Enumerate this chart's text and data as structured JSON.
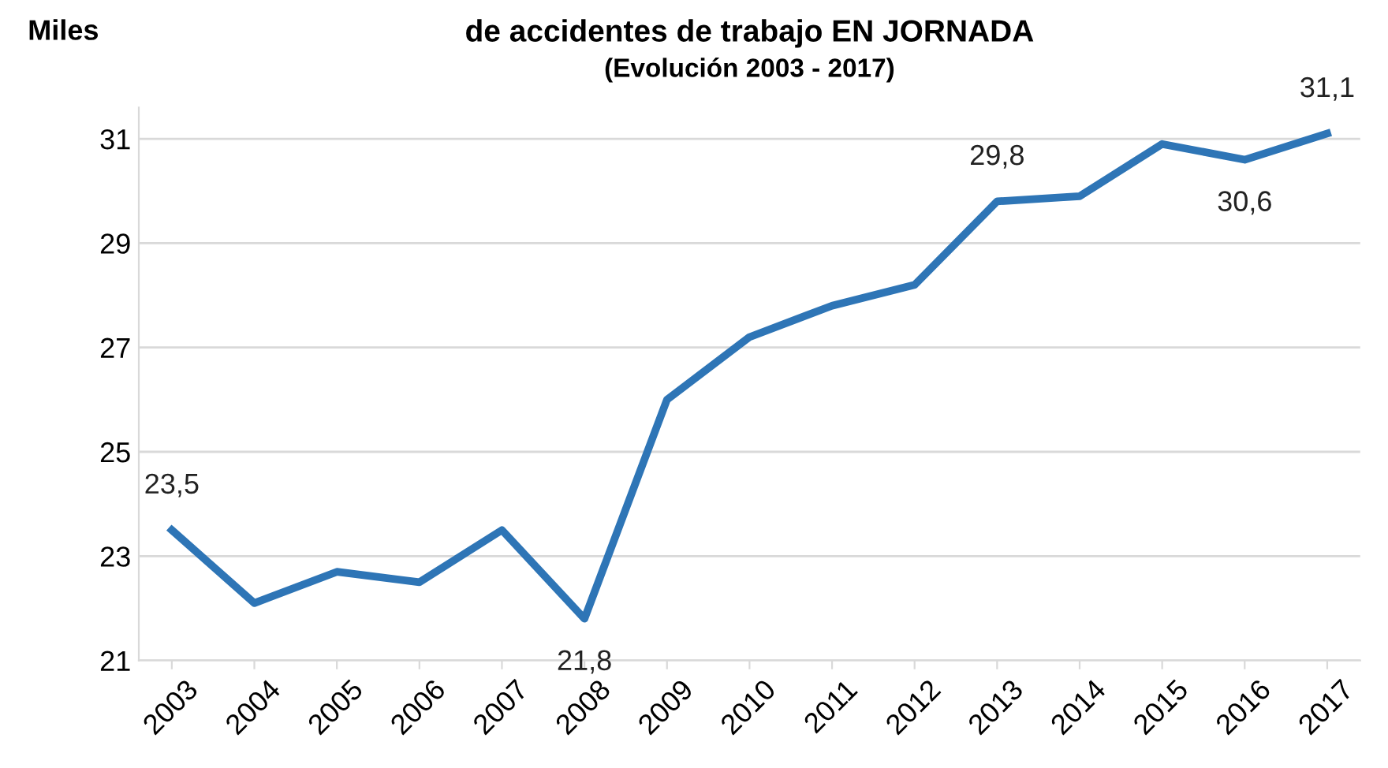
{
  "chart_data": {
    "type": "line",
    "title": "de accidentes de trabajo EN JORNADA",
    "subtitle": "(Evolución 2003 - 2017)",
    "ylabel": "Miles",
    "categories": [
      "2003",
      "2004",
      "2005",
      "2006",
      "2007",
      "2008",
      "2009",
      "2010",
      "2011",
      "2012",
      "2013",
      "2014",
      "2015",
      "2016",
      "2017"
    ],
    "series": [
      {
        "color": "#2e75b6",
        "values": [
          23.5,
          22.1,
          22.7,
          22.5,
          23.5,
          21.8,
          26.0,
          27.2,
          27.8,
          28.2,
          29.8,
          29.9,
          30.9,
          30.6,
          31.1
        ],
        "value_labels": [
          "23,5",
          null,
          null,
          null,
          null,
          "21,8",
          null,
          null,
          null,
          null,
          "29,8",
          null,
          null,
          "30,6",
          "31,1"
        ]
      }
    ],
    "ylim": [
      21,
      31.6
    ],
    "yticks": [
      21,
      23,
      25,
      27,
      29,
      31
    ],
    "grid": "y",
    "marker": "none",
    "line_style": "solid",
    "legend": false
  }
}
